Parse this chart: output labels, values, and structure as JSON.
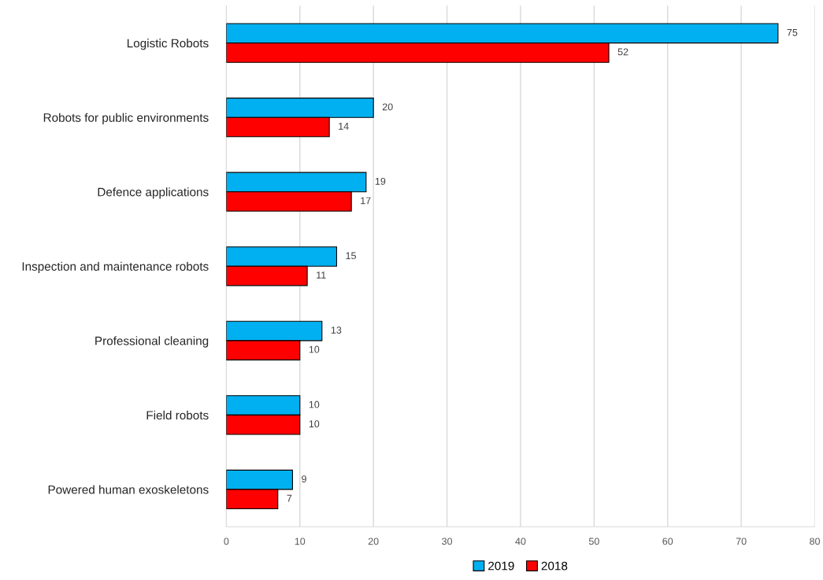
{
  "chart_data": {
    "type": "bar",
    "orientation": "horizontal",
    "categories": [
      "Logistic Robots",
      "Robots for public environments",
      "Defence applications",
      "Inspection and maintenance robots",
      "Professional cleaning",
      "Field robots",
      "Powered human exoskeletons"
    ],
    "series": [
      {
        "name": "2019",
        "color": "#00b0f0",
        "values": [
          75,
          20,
          19,
          15,
          13,
          10,
          9
        ]
      },
      {
        "name": "2018",
        "color": "#ff0000",
        "values": [
          52,
          14,
          17,
          11,
          10,
          10,
          7
        ]
      }
    ],
    "xlim": [
      0,
      80
    ],
    "xticks": [
      0,
      10,
      20,
      30,
      40,
      50,
      60,
      70,
      80
    ],
    "grid": "x",
    "legend": "bottom",
    "data_labels": true
  }
}
